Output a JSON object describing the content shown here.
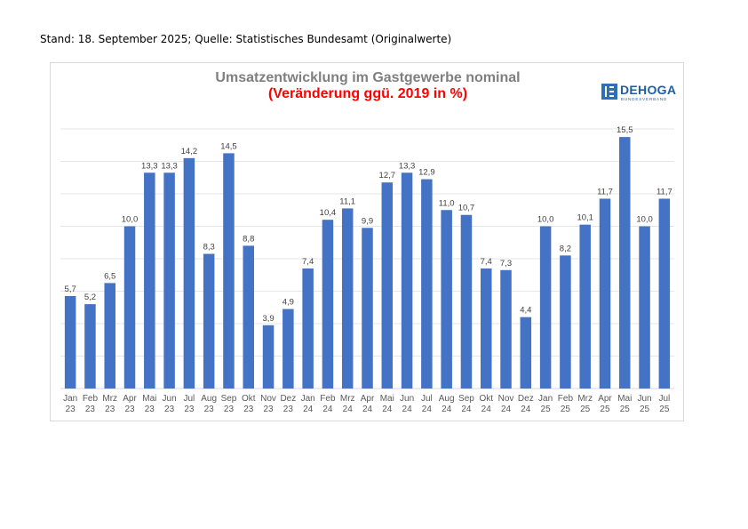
{
  "header": {
    "source_line": "Stand: 18. September 2025; Quelle: Statistisches Bundesamt (Originalwerte)"
  },
  "logo": {
    "name": "DEHOGA",
    "subtitle": "BUNDESVERBAND"
  },
  "colors": {
    "bar": "#4472c4",
    "title": "#7f7f7f",
    "subtitle": "#ff0000",
    "grid": "#e6e6e6",
    "tick_label": "#595959"
  },
  "chart_data": {
    "type": "bar",
    "title": "Umsatzentwicklung im Gastgewerbe nominal",
    "subtitle": "(Veränderung ggü. 2019 in %)",
    "xlabel": "",
    "ylabel": "",
    "ylim": [
      0,
      16
    ],
    "gridlines": [
      2,
      4,
      6,
      8,
      10,
      12,
      14,
      16
    ],
    "grid": true,
    "legend": "none",
    "data_labels": true,
    "categories": [
      [
        "Jan",
        "23"
      ],
      [
        "Feb",
        "23"
      ],
      [
        "Mrz",
        "23"
      ],
      [
        "Apr",
        "23"
      ],
      [
        "Mai",
        "23"
      ],
      [
        "Jun",
        "23"
      ],
      [
        "Jul",
        "23"
      ],
      [
        "Aug",
        "23"
      ],
      [
        "Sep",
        "23"
      ],
      [
        "Okt",
        "23"
      ],
      [
        "Nov",
        "23"
      ],
      [
        "Dez",
        "23"
      ],
      [
        "Jan",
        "24"
      ],
      [
        "Feb",
        "24"
      ],
      [
        "Mrz",
        "24"
      ],
      [
        "Apr",
        "24"
      ],
      [
        "Mai",
        "24"
      ],
      [
        "Jun",
        "24"
      ],
      [
        "Jul",
        "24"
      ],
      [
        "Aug",
        "24"
      ],
      [
        "Sep",
        "24"
      ],
      [
        "Okt",
        "24"
      ],
      [
        "Nov",
        "24"
      ],
      [
        "Dez",
        "24"
      ],
      [
        "Jan",
        "25"
      ],
      [
        "Feb",
        "25"
      ],
      [
        "Mrz",
        "25"
      ],
      [
        "Apr",
        "25"
      ],
      [
        "Mai",
        "25"
      ],
      [
        "Jun",
        "25"
      ],
      [
        "Jul",
        "25"
      ]
    ],
    "values": [
      5.7,
      5.2,
      6.5,
      10.0,
      13.3,
      13.3,
      14.2,
      8.3,
      14.5,
      8.8,
      3.9,
      4.9,
      7.4,
      10.4,
      11.1,
      9.9,
      12.7,
      13.3,
      12.9,
      11.0,
      10.7,
      7.4,
      7.3,
      4.4,
      10.0,
      8.2,
      10.1,
      11.7,
      15.5,
      10.0,
      11.7
    ],
    "value_labels": [
      "5,7",
      "5,2",
      "6,5",
      "10,0",
      "13,3",
      "13,3",
      "14,2",
      "8,3",
      "14,5",
      "8,8",
      "3,9",
      "4,9",
      "7,4",
      "10,4",
      "11,1",
      "9,9",
      "12,7",
      "13,3",
      "12,9",
      "11,0",
      "10,7",
      "7,4",
      "7,3",
      "4,4",
      "10,0",
      "8,2",
      "10,1",
      "11,7",
      "15,5",
      "10,0",
      "11,7"
    ]
  }
}
